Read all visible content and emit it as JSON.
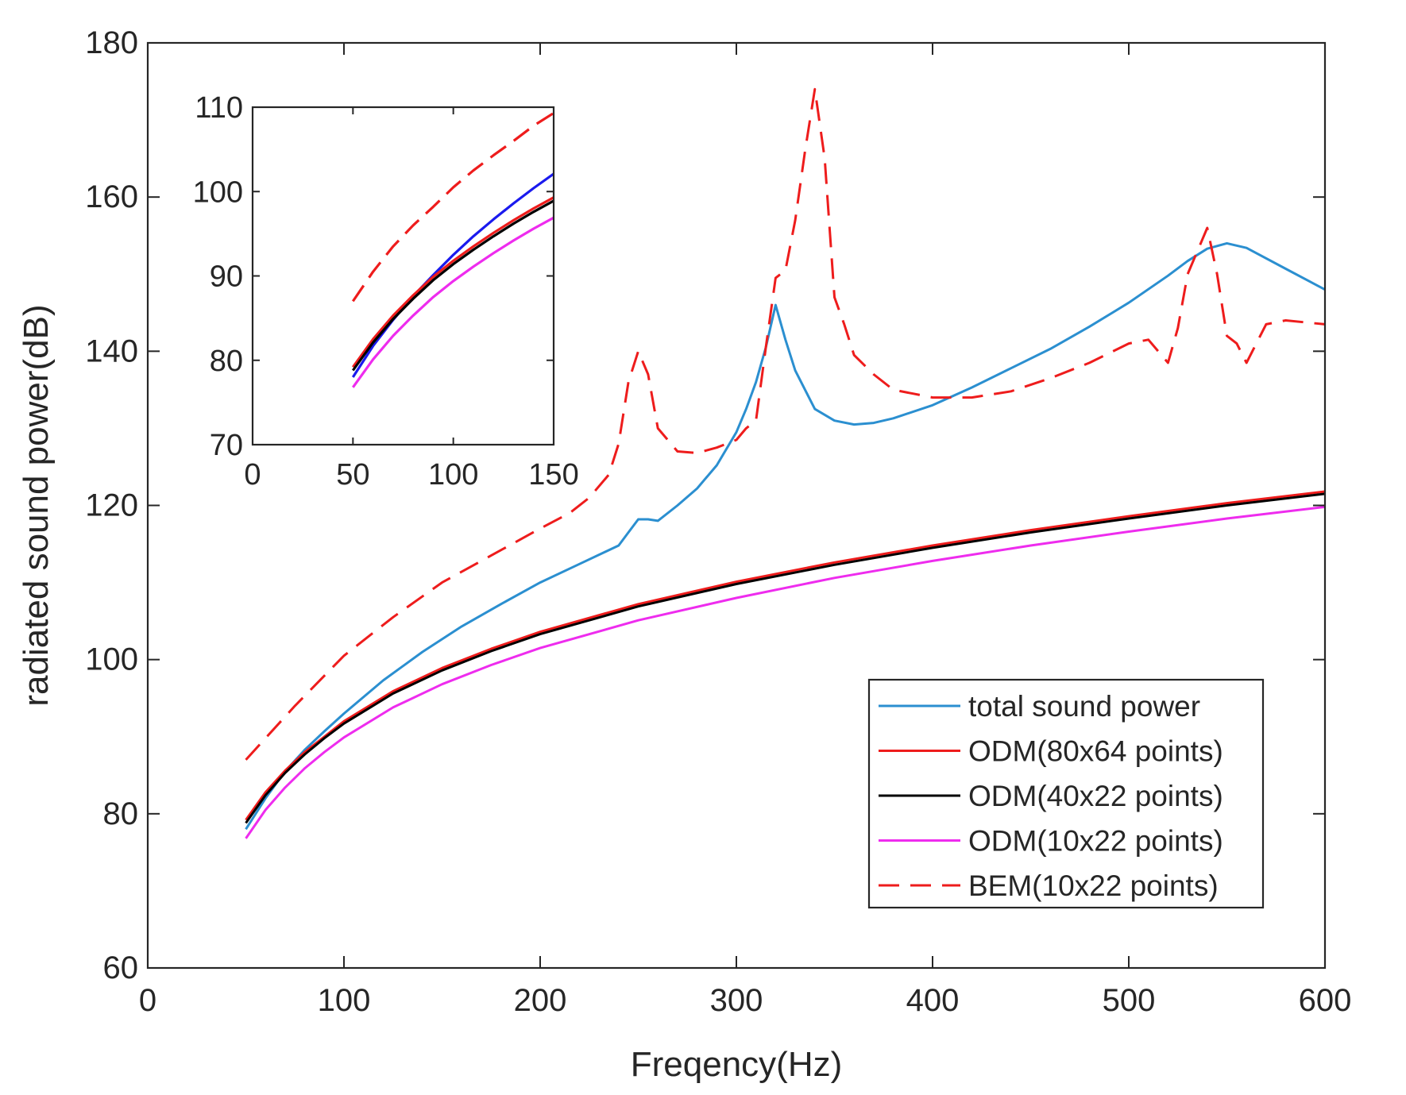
{
  "chart_data": [
    {
      "type": "line",
      "role": "main",
      "title": "",
      "xlabel": "Freqency(Hz)",
      "ylabel": "radiated sound power(dB)",
      "xlim": [
        0,
        600
      ],
      "ylim": [
        60,
        180
      ],
      "xticks": [
        0,
        100,
        200,
        300,
        400,
        500,
        600
      ],
      "yticks": [
        60,
        80,
        100,
        120,
        140,
        160,
        180
      ],
      "grid": false,
      "legend_position": "bottom-right",
      "series": [
        {
          "name": "total sound power",
          "color": "#2b8fd0",
          "dash": "solid",
          "x": [
            50,
            60,
            70,
            80,
            90,
            100,
            120,
            140,
            160,
            180,
            200,
            220,
            240,
            245,
            250,
            255,
            260,
            270,
            280,
            290,
            300,
            305,
            310,
            315,
            320,
            325,
            330,
            340,
            350,
            360,
            370,
            380,
            400,
            420,
            440,
            460,
            480,
            500,
            520,
            530,
            540,
            550,
            560,
            580,
            600
          ],
          "y": [
            78,
            82,
            85.5,
            88.3,
            90.7,
            93,
            97.3,
            101,
            104.3,
            107.2,
            110,
            112.4,
            114.8,
            116.5,
            118.2,
            118.2,
            118,
            120,
            122.2,
            125.2,
            129.5,
            132.5,
            136,
            140.5,
            146,
            141.5,
            137.5,
            132.5,
            131,
            130.5,
            130.7,
            131.3,
            133,
            135.3,
            137.8,
            140.3,
            143.2,
            146.3,
            149.8,
            151.7,
            153.3,
            154,
            153.4,
            150.7,
            148
          ]
        },
        {
          "name": "ODM(80x64 points)",
          "color": "#ee1c1c",
          "dash": "solid",
          "x": [
            50,
            60,
            70,
            80,
            90,
            100,
            125,
            150,
            175,
            200,
            250,
            300,
            350,
            400,
            450,
            500,
            550,
            600
          ],
          "y": [
            79.2,
            82.8,
            85.6,
            88.0,
            90.0,
            92.0,
            95.9,
            98.9,
            101.4,
            103.6,
            107.2,
            110.1,
            112.6,
            114.8,
            116.8,
            118.6,
            120.3,
            121.8
          ]
        },
        {
          "name": "ODM(40x22 points)",
          "color": "#000000",
          "dash": "solid",
          "x": [
            50,
            60,
            70,
            80,
            90,
            100,
            125,
            150,
            175,
            200,
            250,
            300,
            350,
            400,
            450,
            500,
            550,
            600
          ],
          "y": [
            78.8,
            82.4,
            85.3,
            87.7,
            89.8,
            91.7,
            95.6,
            98.6,
            101.1,
            103.3,
            106.9,
            109.8,
            112.3,
            114.5,
            116.5,
            118.3,
            120.0,
            121.5
          ]
        },
        {
          "name": "ODM(10x22 points)",
          "color": "#ee2cee",
          "dash": "solid",
          "x": [
            50,
            60,
            70,
            80,
            90,
            100,
            125,
            150,
            175,
            200,
            250,
            300,
            350,
            400,
            450,
            500,
            550,
            600
          ],
          "y": [
            76.8,
            80.5,
            83.4,
            85.9,
            88.0,
            89.9,
            93.8,
            96.8,
            99.3,
            101.5,
            105.1,
            108.0,
            110.6,
            112.8,
            114.8,
            116.6,
            118.3,
            119.8
          ]
        },
        {
          "name": "BEM(10x22 points)",
          "color": "#ee1c1c",
          "dash": "dashed",
          "x": [
            50,
            75,
            100,
            125,
            150,
            175,
            200,
            215,
            225,
            235,
            240,
            245,
            250,
            255,
            260,
            270,
            280,
            290,
            300,
            305,
            310,
            315,
            320,
            325,
            330,
            335,
            340,
            345,
            350,
            355,
            360,
            370,
            380,
            390,
            400,
            420,
            440,
            460,
            480,
            500,
            510,
            520,
            525,
            530,
            540,
            545,
            550,
            555,
            560,
            570,
            580,
            600
          ],
          "y": [
            87,
            94,
            100.5,
            105.5,
            110,
            113.5,
            117,
            119,
            121,
            124,
            128,
            136,
            140,
            137,
            130,
            127,
            126.8,
            127.5,
            128.5,
            130,
            131,
            140.5,
            149.5,
            150.5,
            157,
            166,
            174,
            165,
            147,
            143.5,
            139.5,
            137,
            135,
            134.5,
            134,
            134,
            134.8,
            136.5,
            138.5,
            141,
            141.5,
            138.5,
            143,
            150,
            156,
            150,
            142,
            141,
            138.5,
            143.5,
            144,
            143.5
          ]
        }
      ]
    },
    {
      "type": "line",
      "role": "inset",
      "title": "",
      "xlabel": "",
      "ylabel": "",
      "xlim": [
        0,
        150
      ],
      "ylim": [
        70,
        110
      ],
      "xticks": [
        0,
        50,
        100,
        150
      ],
      "yticks": [
        70,
        80,
        90,
        100,
        110
      ],
      "grid": false,
      "series": [
        {
          "name": "BEM",
          "color": "#ee1c1c",
          "dash": "dashed",
          "x": [
            50,
            60,
            70,
            80,
            90,
            100,
            110,
            120,
            130,
            140,
            150
          ],
          "y": [
            87,
            90.5,
            93.5,
            96,
            98.2,
            100.5,
            102.5,
            104.3,
            106,
            107.8,
            109.3
          ]
        },
        {
          "name": "total",
          "color": "#1a1aee",
          "dash": "solid",
          "x": [
            50,
            60,
            70,
            80,
            90,
            100,
            110,
            120,
            130,
            140,
            150
          ],
          "y": [
            78,
            81.7,
            84.8,
            87.6,
            90.1,
            92.5,
            94.7,
            96.7,
            98.6,
            100.4,
            102.1
          ]
        },
        {
          "name": "ODM 80x64",
          "color": "#ee1c1c",
          "dash": "solid",
          "x": [
            50,
            60,
            70,
            80,
            90,
            100,
            110,
            120,
            130,
            140,
            150
          ],
          "y": [
            79.2,
            82.5,
            85.3,
            87.7,
            89.9,
            91.8,
            93.5,
            95.1,
            96.6,
            98,
            99.3
          ]
        },
        {
          "name": "ODM 40x22",
          "color": "#000000",
          "dash": "solid",
          "x": [
            50,
            60,
            70,
            80,
            90,
            100,
            110,
            120,
            130,
            140,
            150
          ],
          "y": [
            78.8,
            82.1,
            84.9,
            87.3,
            89.5,
            91.4,
            93.1,
            94.7,
            96.2,
            97.6,
            98.9
          ]
        },
        {
          "name": "ODM 10x22",
          "color": "#ee2cee",
          "dash": "solid",
          "x": [
            50,
            60,
            70,
            80,
            90,
            100,
            110,
            120,
            130,
            140,
            150
          ],
          "y": [
            76.8,
            80.1,
            82.9,
            85.3,
            87.5,
            89.4,
            91.1,
            92.7,
            94.2,
            95.6,
            96.9
          ]
        }
      ]
    }
  ]
}
